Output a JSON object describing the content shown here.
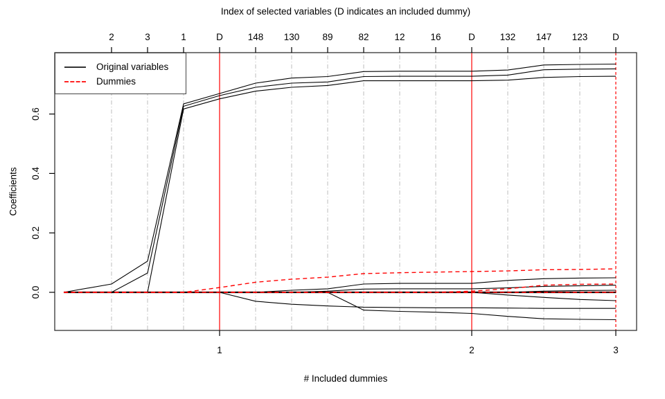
{
  "title": "Index of selected variables (D indicates an included dummy)",
  "legend": {
    "original_label": "Original variables",
    "dummies_label": "Dummies"
  },
  "colors": {
    "line_black": "#000000",
    "dummy_red": "#ff0000",
    "grid_gray": "#c4c4c4",
    "box": "#333333"
  },
  "chart_data": {
    "type": "line",
    "title": "Index of selected variables (D indicates an included dummy)",
    "xlabel": "# Included dummies",
    "ylabel": "Coefficients",
    "ylim": [
      -0.128,
      0.807
    ],
    "grid": "vertical-at-steps",
    "legend_position": "top-left",
    "y_ticks": [
      "0.0",
      "0.2",
      "0.4",
      "0.6"
    ],
    "y_tick_values": [
      0.0,
      0.2,
      0.4,
      0.6
    ],
    "top_axis": {
      "step_labels": [
        "2",
        "3",
        "1",
        "D",
        "148",
        "130",
        "89",
        "82",
        "12",
        "16",
        "D",
        "132",
        "147",
        "123",
        "D"
      ],
      "dummy_steps": [
        4,
        11,
        15
      ]
    },
    "bottom_ticks": [
      {
        "step": 4,
        "label": "1"
      },
      {
        "step": 11,
        "label": "2"
      },
      {
        "step": 15,
        "label": "3"
      }
    ],
    "steps": [
      0,
      1,
      2,
      3,
      4,
      5,
      6,
      7,
      8,
      9,
      10,
      11,
      12,
      13,
      14,
      15
    ],
    "series": [
      {
        "name": "var-2",
        "color": "black",
        "dashed": false,
        "values": [
          0,
          0.028,
          0.105,
          0.634,
          0.669,
          0.704,
          0.721,
          0.726,
          0.743,
          0.744,
          0.744,
          0.744,
          0.748,
          0.765,
          0.767,
          0.768
        ]
      },
      {
        "name": "var-3",
        "color": "black",
        "dashed": false,
        "values": [
          0,
          0,
          0.065,
          0.626,
          0.662,
          0.69,
          0.704,
          0.708,
          0.726,
          0.727,
          0.727,
          0.727,
          0.731,
          0.749,
          0.751,
          0.752
        ]
      },
      {
        "name": "var-1",
        "color": "black",
        "dashed": false,
        "values": [
          0,
          0,
          0,
          0.617,
          0.651,
          0.677,
          0.69,
          0.696,
          0.712,
          0.712,
          0.712,
          0.712,
          0.714,
          0.723,
          0.726,
          0.727
        ]
      },
      {
        "name": "var-148",
        "color": "black",
        "dashed": false,
        "values": [
          0,
          0,
          0,
          0,
          0,
          -0.03,
          -0.04,
          -0.046,
          -0.05,
          -0.051,
          -0.052,
          -0.052,
          -0.053,
          -0.054,
          -0.054,
          -0.054
        ]
      },
      {
        "name": "var-130",
        "color": "black",
        "dashed": false,
        "values": [
          0,
          0,
          0,
          0,
          0,
          0,
          0.007,
          0.012,
          0.028,
          0.03,
          0.03,
          0.03,
          0.04,
          0.046,
          0.048,
          0.049
        ]
      },
      {
        "name": "var-89",
        "color": "black",
        "dashed": false,
        "values": [
          0,
          0,
          0,
          0,
          0,
          0,
          0,
          0.004,
          0.011,
          0.012,
          0.012,
          0.012,
          0.015,
          0.02,
          0.022,
          0.024
        ]
      },
      {
        "name": "var-82",
        "color": "black",
        "dashed": false,
        "values": [
          0,
          0,
          0,
          0,
          0,
          0,
          0,
          0,
          -0.06,
          -0.064,
          -0.067,
          -0.071,
          -0.081,
          -0.089,
          -0.091,
          -0.092
        ]
      },
      {
        "name": "var-12",
        "color": "black",
        "dashed": false,
        "values": [
          0,
          0,
          0,
          0,
          0,
          0,
          0,
          0,
          0,
          0,
          0,
          0,
          0,
          0,
          0,
          0
        ]
      },
      {
        "name": "var-16",
        "color": "black",
        "dashed": false,
        "values": [
          0,
          0,
          0,
          0,
          0,
          0,
          0,
          0,
          0,
          0,
          0,
          0,
          0,
          0,
          0,
          0
        ]
      },
      {
        "name": "var-132",
        "color": "black",
        "dashed": false,
        "values": [
          0,
          0,
          0,
          0,
          0,
          0,
          0,
          0,
          0,
          0,
          0,
          0,
          -0.009,
          -0.017,
          -0.024,
          -0.028
        ]
      },
      {
        "name": "var-147",
        "color": "black",
        "dashed": false,
        "values": [
          0,
          0,
          0,
          0,
          0,
          0,
          0,
          0,
          0,
          0,
          0,
          0,
          0,
          0.004,
          0.006,
          0.007
        ]
      },
      {
        "name": "var-123",
        "color": "black",
        "dashed": false,
        "values": [
          0,
          0,
          0,
          0,
          0,
          0,
          0,
          0,
          0,
          0,
          0,
          0,
          0,
          0,
          0,
          0
        ]
      },
      {
        "name": "dummy-1",
        "color": "red",
        "dashed": true,
        "values": [
          0,
          0,
          0,
          0,
          0.016,
          0.034,
          0.044,
          0.051,
          0.063,
          0.066,
          0.068,
          0.07,
          0.072,
          0.076,
          0.077,
          0.079
        ]
      },
      {
        "name": "dummy-2",
        "color": "red",
        "dashed": true,
        "values": [
          0,
          0,
          0,
          0,
          0,
          0,
          0,
          0,
          0,
          0,
          0,
          0.004,
          0.012,
          0.024,
          0.027,
          0.028
        ]
      },
      {
        "name": "dummy-3",
        "color": "red",
        "dashed": true,
        "values": [
          0,
          0,
          0,
          0,
          0,
          0,
          0,
          0,
          0,
          0,
          0,
          0,
          0,
          0,
          0,
          0
        ]
      }
    ]
  }
}
